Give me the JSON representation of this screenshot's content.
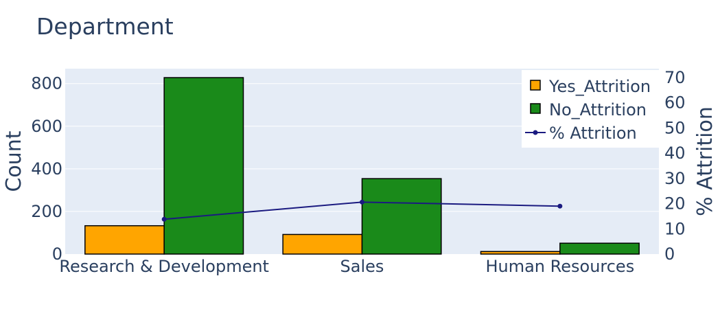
{
  "chart_data": {
    "type": "bar",
    "title": "Department",
    "categories": [
      "Research & Development",
      "Sales",
      "Human Resources"
    ],
    "series": [
      {
        "name": "Yes_Attrition",
        "type": "bar",
        "axis": "left",
        "color": "#ffa500",
        "values": [
          133,
          92,
          12
        ]
      },
      {
        "name": "No_Attrition",
        "type": "bar",
        "axis": "left",
        "color": "#1a8a1a",
        "values": [
          828,
          354,
          51
        ]
      },
      {
        "name": "% Attrition",
        "type": "line",
        "axis": "right",
        "color": "#1a1a80",
        "values": [
          13.8,
          20.6,
          19.0
        ]
      }
    ],
    "ylabel": "Count",
    "ylim": [
      0,
      870
    ],
    "yticks": [
      0,
      200,
      400,
      600,
      800
    ],
    "y2label": "% Attrition",
    "y2lim": [
      0,
      73.5
    ],
    "y2ticks": [
      0,
      10,
      20,
      30,
      40,
      50,
      60,
      70
    ],
    "grid": true,
    "legend_position": "top-right",
    "colors": {
      "plot_bg": "#e5ecf6",
      "text": "#2a3f5f",
      "bar_outline": "#000000"
    }
  }
}
